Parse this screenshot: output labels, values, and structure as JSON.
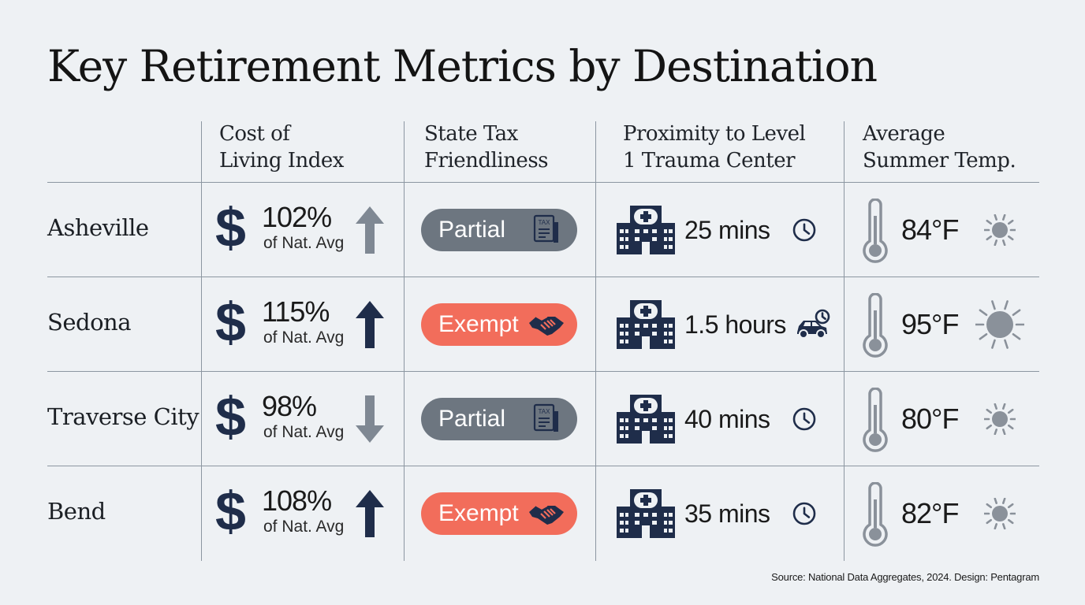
{
  "title": "Key Retirement Metrics by Destination",
  "columns": [
    {
      "line1": "Cost of",
      "line2": "Living Index"
    },
    {
      "line1": "State Tax",
      "line2": "Friendliness"
    },
    {
      "line1": "Proximity to Level",
      "line2": "1 Trauma Center"
    },
    {
      "line1": "Average",
      "line2": "Summer Temp."
    }
  ],
  "rows": [
    {
      "city": "Asheville",
      "cost": "102%",
      "cost_note": "of Nat. Avg",
      "trend": "up",
      "trend_color": "#7f8893",
      "tax": "Partial",
      "tax_icon": "tax-document-icon",
      "proximity": "25 mins",
      "proximity_icon": "clock-icon",
      "temp": "84°F",
      "sun_size": "small"
    },
    {
      "city": "Sedona",
      "cost": "115%",
      "cost_note": "of Nat. Avg",
      "trend": "up",
      "trend_color": "#1f2d4a",
      "tax": "Exempt",
      "tax_icon": "handshake-icon",
      "proximity": "1.5 hours",
      "proximity_icon": "car-clock-icon",
      "temp": "95°F",
      "sun_size": "large"
    },
    {
      "city": "Traverse City",
      "cost": "98%",
      "cost_note": "of Nat. Avg",
      "trend": "down",
      "trend_color": "#7f8893",
      "tax": "Partial",
      "tax_icon": "tax-document-icon",
      "proximity": "40 mins",
      "proximity_icon": "clock-icon",
      "temp": "80°F",
      "sun_size": "small"
    },
    {
      "city": "Bend",
      "cost": "108%",
      "cost_note": "of Nat. Avg",
      "trend": "up",
      "trend_color": "#1f2d4a",
      "tax": "Exempt",
      "tax_icon": "handshake-icon",
      "proximity": "35 mins",
      "proximity_icon": "clock-icon",
      "temp": "82°F",
      "sun_size": "small"
    }
  ],
  "icons": {
    "tax_document": "TAX"
  },
  "colors": {
    "partial_pill": "#6d7680",
    "exempt_pill": "#f26d5b",
    "navy": "#1f2d4a",
    "gray": "#7f8893",
    "background": "#eef1f4"
  },
  "source": "Source: National Data Aggregates, 2024. Design: Pentagram"
}
